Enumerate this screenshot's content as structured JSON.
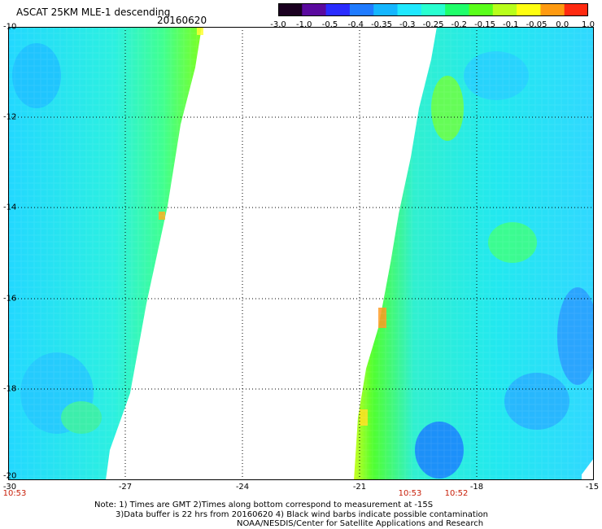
{
  "header": {
    "title": "ASCAT 25KM MLE-1 descending",
    "date": "20160620"
  },
  "colorbar": {
    "labels": [
      "-3.0",
      "-1.0",
      "-0.5",
      "-0.4",
      "-0.35",
      "-0.3",
      "-0.25",
      "-0.2",
      "-0.15",
      "-0.1",
      "-0.05",
      "0.0",
      "1.0"
    ],
    "colors": [
      "#1a0020",
      "#5a0a9e",
      "#2a2cff",
      "#1f7bff",
      "#14b6ff",
      "#1fe8ff",
      "#28ffd0",
      "#1fff6a",
      "#5aff1a",
      "#b8ff1a",
      "#ffff10",
      "#ff9a10",
      "#ff2a10"
    ]
  },
  "map": {
    "lat_labels": [
      "-10",
      "-12",
      "-14",
      "-16",
      "-18",
      "-20"
    ],
    "lon_labels": [
      "-30",
      "-27",
      "-24",
      "-21",
      "-18",
      "-15"
    ],
    "times": [
      "10:53",
      "10:53",
      "10:52"
    ]
  },
  "notes": {
    "line1": "Note: 1) Times are GMT 2)Times along bottom correspond to measurement at -15S",
    "line2": "3)Data buffer is 22 hrs from 20160620 4) Black wind barbs indicate possible contamination",
    "line3": "NOAA/NESDIS/Center for Satellite Applications and Research"
  }
}
